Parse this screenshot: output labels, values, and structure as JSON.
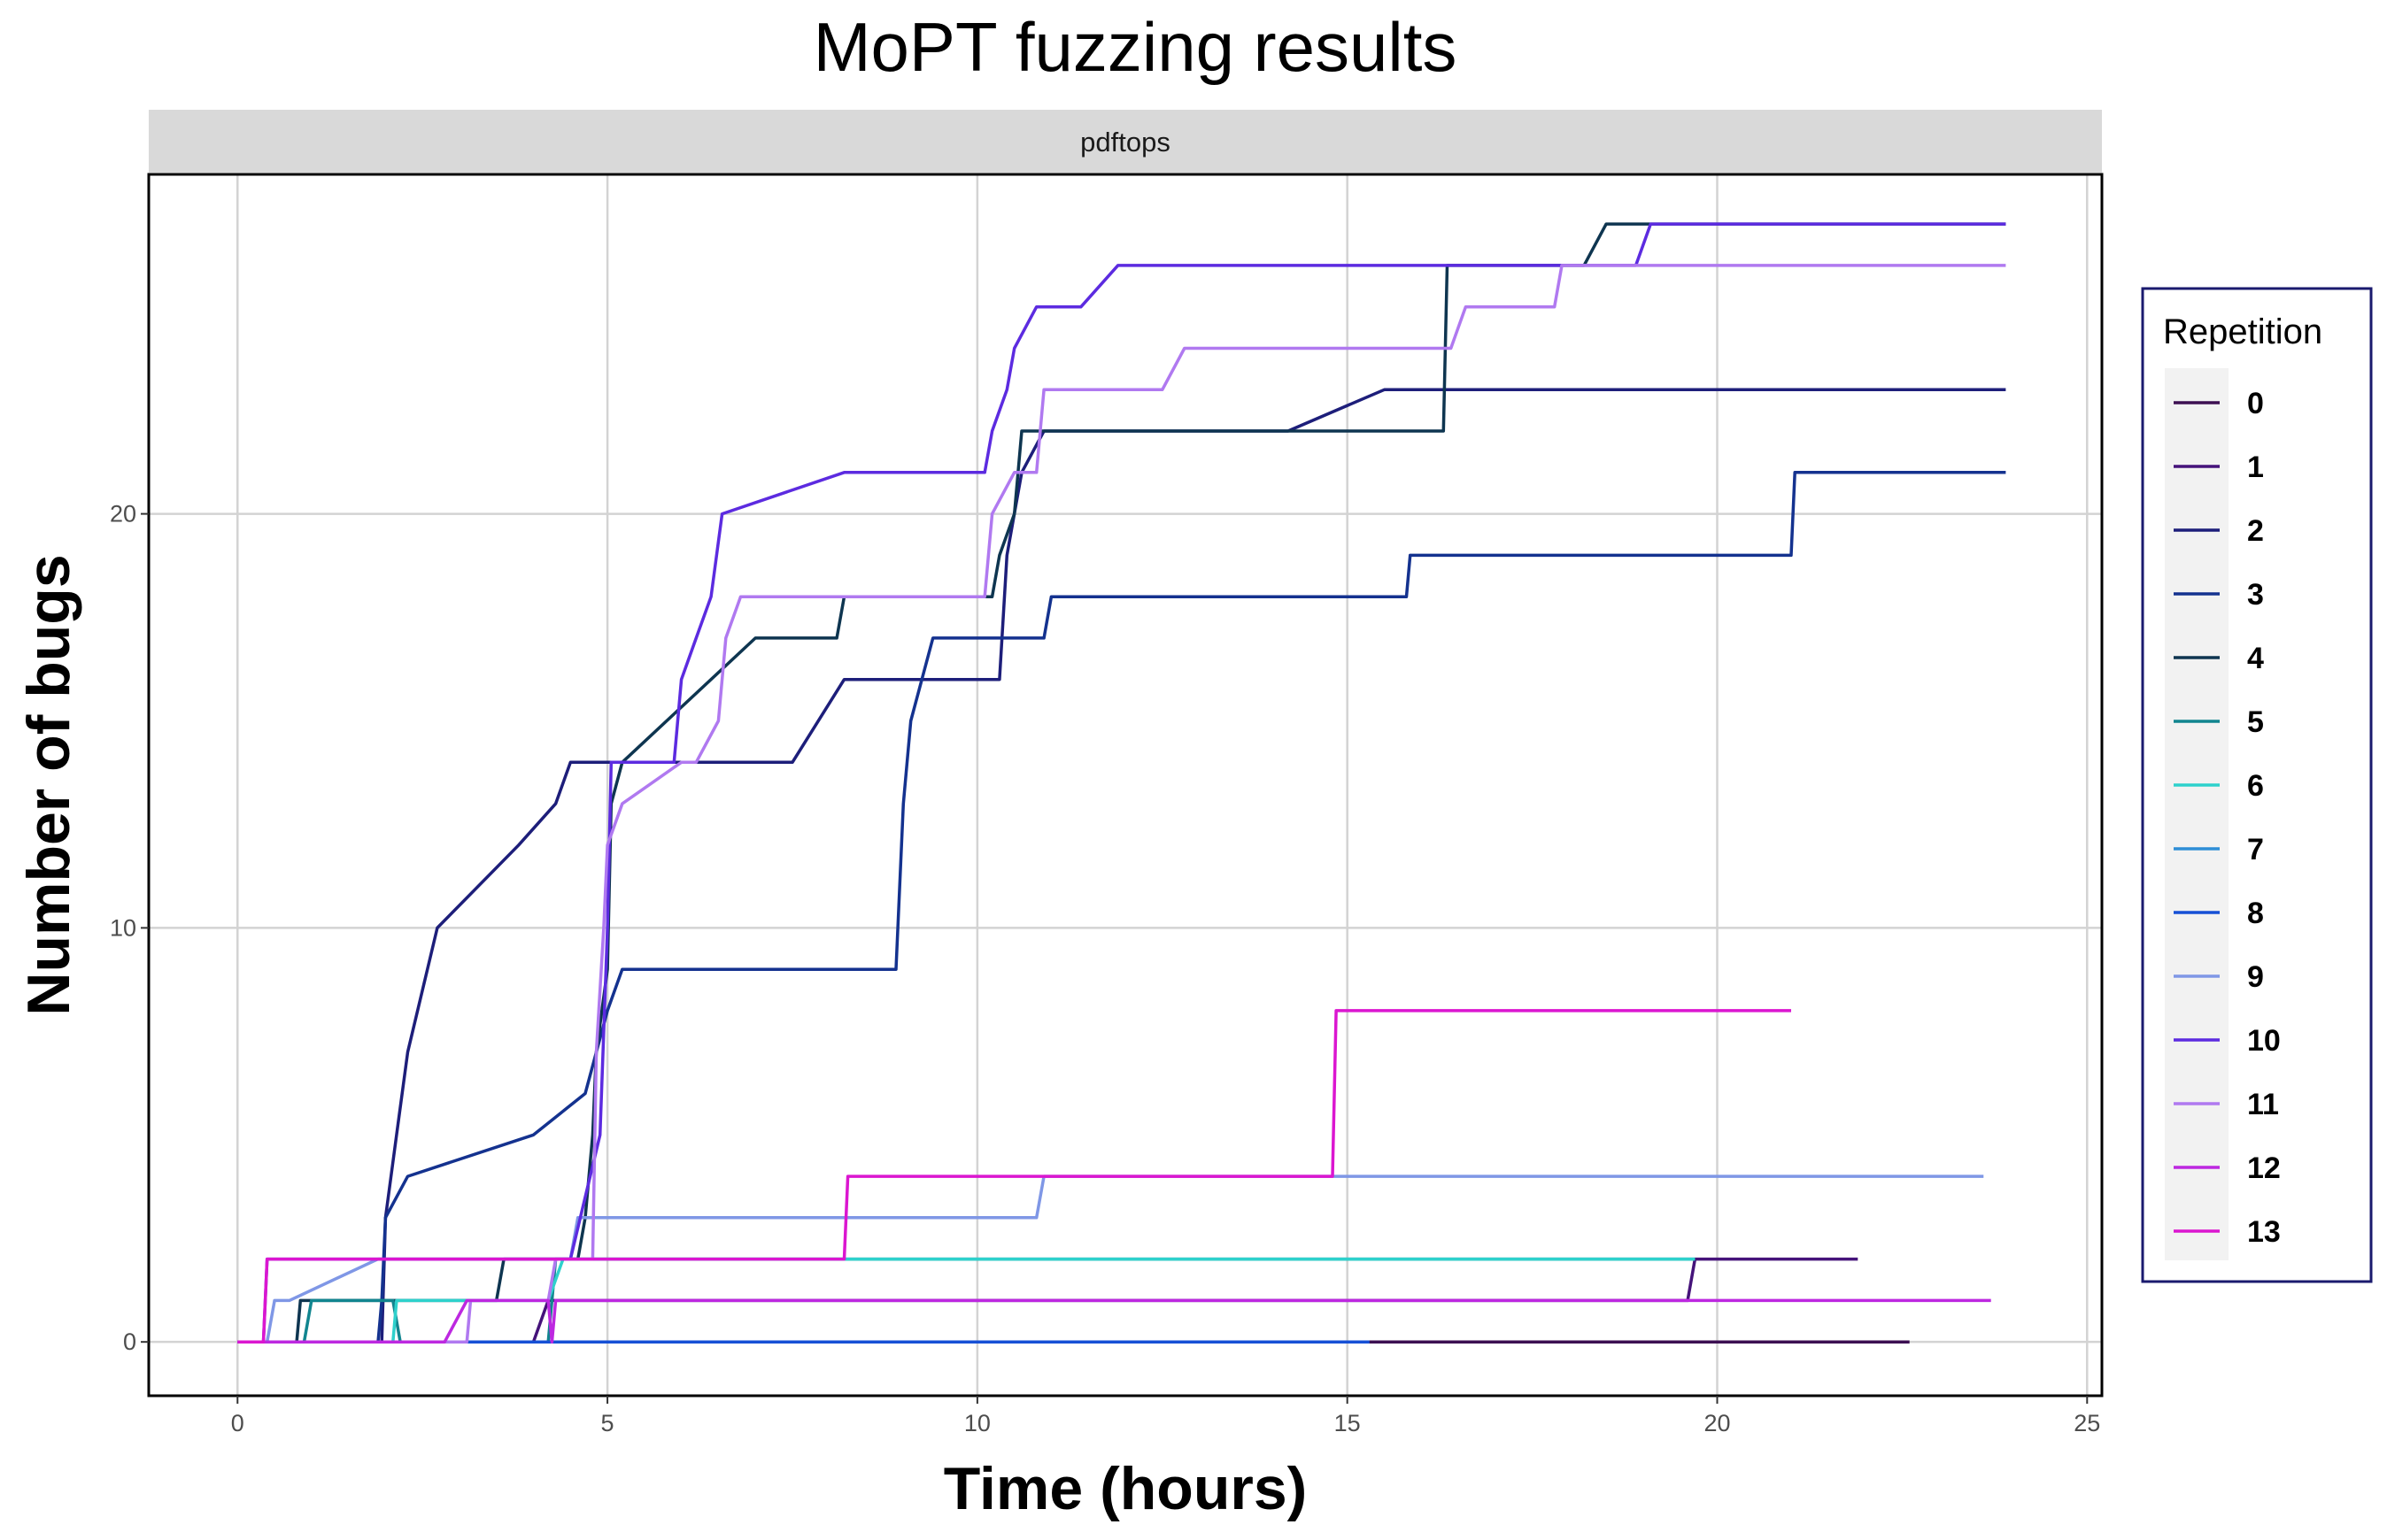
{
  "chart_data": {
    "type": "line",
    "step": true,
    "title": "MoPT fuzzing results",
    "facet_label": "pdftops",
    "xlabel": "Time (hours)",
    "ylabel": "Number of bugs",
    "xlim": [
      -1.2,
      25.2
    ],
    "ylim": [
      -1.3,
      28.2
    ],
    "xticks": [
      0,
      5,
      10,
      15,
      20,
      25
    ],
    "yticks": [
      0,
      10,
      20
    ],
    "grid": true,
    "legend_title": "Repetition",
    "legend_position": "right",
    "series": [
      {
        "name": "0",
        "color": "#3c0f52",
        "points": [
          [
            0,
            0
          ],
          [
            22.6,
            0
          ]
        ]
      },
      {
        "name": "1",
        "color": "#45137a",
        "points": [
          [
            0,
            0
          ],
          [
            4,
            0
          ],
          [
            4.2,
            1
          ],
          [
            19.6,
            1
          ],
          [
            19.7,
            2
          ],
          [
            21.9,
            2
          ]
        ]
      },
      {
        "name": "2",
        "color": "#1d1e7a",
        "points": [
          [
            0,
            0
          ],
          [
            1.95,
            0
          ],
          [
            2.0,
            3
          ],
          [
            2.15,
            5
          ],
          [
            2.3,
            7
          ],
          [
            2.7,
            10
          ],
          [
            3.8,
            12
          ],
          [
            4.3,
            13
          ],
          [
            4.5,
            14
          ],
          [
            7.5,
            14
          ],
          [
            8.2,
            16
          ],
          [
            10.3,
            16
          ],
          [
            10.4,
            19
          ],
          [
            10.6,
            21
          ],
          [
            10.9,
            22
          ],
          [
            12.8,
            22
          ],
          [
            14.2,
            22
          ],
          [
            15.5,
            23
          ],
          [
            23.9,
            23
          ]
        ]
      },
      {
        "name": "3",
        "color": "#14328f",
        "points": [
          [
            0,
            0
          ],
          [
            1.9,
            0
          ],
          [
            1.95,
            1
          ],
          [
            2.0,
            3
          ],
          [
            2.3,
            4
          ],
          [
            4.0,
            5
          ],
          [
            4.7,
            6
          ],
          [
            5.0,
            8
          ],
          [
            5.2,
            9
          ],
          [
            8.9,
            9
          ],
          [
            9.0,
            13
          ],
          [
            9.1,
            15
          ],
          [
            9.4,
            17
          ],
          [
            10.9,
            17
          ],
          [
            11.0,
            18
          ],
          [
            11.3,
            18
          ],
          [
            15.8,
            18
          ],
          [
            15.85,
            19
          ],
          [
            21.0,
            19
          ],
          [
            21.05,
            21
          ],
          [
            23.9,
            21
          ]
        ]
      },
      {
        "name": "4",
        "color": "#0e3550",
        "points": [
          [
            0,
            0
          ],
          [
            0.8,
            0
          ],
          [
            0.85,
            1
          ],
          [
            3.5,
            1
          ],
          [
            3.6,
            2
          ],
          [
            4.6,
            2
          ],
          [
            4.7,
            3
          ],
          [
            4.8,
            5
          ],
          [
            4.85,
            7
          ],
          [
            5.0,
            9
          ],
          [
            5.05,
            13
          ],
          [
            5.2,
            14
          ],
          [
            7.0,
            17
          ],
          [
            8.1,
            17
          ],
          [
            8.2,
            18
          ],
          [
            10.2,
            18
          ],
          [
            10.3,
            19
          ],
          [
            10.5,
            20
          ],
          [
            10.6,
            22
          ],
          [
            16.3,
            22
          ],
          [
            16.35,
            26
          ],
          [
            18.2,
            26
          ],
          [
            18.5,
            27
          ],
          [
            23.9,
            27
          ]
        ]
      },
      {
        "name": "5",
        "color": "#11858f",
        "points": [
          [
            0,
            0
          ],
          [
            0.9,
            0
          ],
          [
            1.0,
            1
          ],
          [
            2.1,
            1
          ],
          [
            2.2,
            0
          ],
          [
            4.2,
            0
          ],
          [
            4.3,
            2
          ],
          [
            19.7,
            2
          ]
        ]
      },
      {
        "name": "6",
        "color": "#2ed1cc",
        "points": [
          [
            0,
            0
          ],
          [
            2.1,
            0
          ],
          [
            2.15,
            1
          ],
          [
            4.2,
            1
          ],
          [
            4.4,
            2
          ],
          [
            19.7,
            2
          ]
        ]
      },
      {
        "name": "7",
        "color": "#2e8ed6",
        "points": [
          [
            0,
            0
          ],
          [
            2.0,
            0
          ]
        ]
      },
      {
        "name": "8",
        "color": "#1650d6",
        "points": [
          [
            0,
            0
          ],
          [
            15.3,
            0
          ]
        ]
      },
      {
        "name": "9",
        "color": "#7f97e6",
        "points": [
          [
            0,
            0
          ],
          [
            0.4,
            0
          ],
          [
            0.5,
            1
          ],
          [
            0.7,
            1
          ],
          [
            1.9,
            2
          ],
          [
            4.5,
            2
          ],
          [
            4.6,
            3
          ],
          [
            10.8,
            3
          ],
          [
            10.9,
            4
          ],
          [
            23.6,
            4
          ]
        ]
      },
      {
        "name": "10",
        "color": "#5c2be0",
        "points": [
          [
            0,
            0
          ],
          [
            0.35,
            0
          ],
          [
            0.4,
            2
          ],
          [
            4.5,
            2
          ],
          [
            4.9,
            5
          ],
          [
            5.0,
            10
          ],
          [
            5.05,
            14
          ],
          [
            5.9,
            14
          ],
          [
            6.0,
            16
          ],
          [
            6.2,
            17
          ],
          [
            6.4,
            18
          ],
          [
            6.55,
            20
          ],
          [
            8.2,
            21
          ],
          [
            10.1,
            21
          ],
          [
            10.2,
            22
          ],
          [
            10.4,
            23
          ],
          [
            10.5,
            24
          ],
          [
            10.8,
            25
          ],
          [
            11.4,
            25
          ],
          [
            11.9,
            26
          ],
          [
            18.9,
            26
          ],
          [
            19.1,
            27
          ],
          [
            23.9,
            27
          ]
        ]
      },
      {
        "name": "11",
        "color": "#b079f0",
        "points": [
          [
            0,
            0
          ],
          [
            3.1,
            0
          ],
          [
            3.15,
            1
          ],
          [
            4.2,
            1
          ],
          [
            4.3,
            2
          ],
          [
            4.8,
            2
          ],
          [
            4.85,
            7
          ],
          [
            4.95,
            10
          ],
          [
            5.0,
            12
          ],
          [
            5.2,
            13
          ],
          [
            6.0,
            14
          ],
          [
            6.2,
            14
          ],
          [
            6.5,
            15
          ],
          [
            6.6,
            17
          ],
          [
            6.8,
            18
          ],
          [
            10.1,
            18
          ],
          [
            10.2,
            20
          ],
          [
            10.5,
            21
          ],
          [
            10.8,
            21
          ],
          [
            10.9,
            23
          ],
          [
            12.5,
            23
          ],
          [
            12.8,
            24
          ],
          [
            16.4,
            24
          ],
          [
            16.6,
            25
          ],
          [
            17.8,
            25
          ],
          [
            17.9,
            26
          ],
          [
            23.9,
            26
          ]
        ]
      },
      {
        "name": "12",
        "color": "#bd28e0",
        "points": [
          [
            0,
            0
          ],
          [
            2.8,
            0
          ],
          [
            3.1,
            1
          ],
          [
            4.2,
            1
          ],
          [
            4.25,
            0
          ],
          [
            4.3,
            1
          ],
          [
            23.7,
            1
          ]
        ]
      },
      {
        "name": "13",
        "color": "#db16d0",
        "points": [
          [
            0,
            0
          ],
          [
            0.35,
            0
          ],
          [
            0.4,
            2
          ],
          [
            8.2,
            2
          ],
          [
            8.25,
            4
          ],
          [
            14.8,
            4
          ],
          [
            14.85,
            8
          ],
          [
            21.0,
            8
          ]
        ]
      }
    ]
  }
}
